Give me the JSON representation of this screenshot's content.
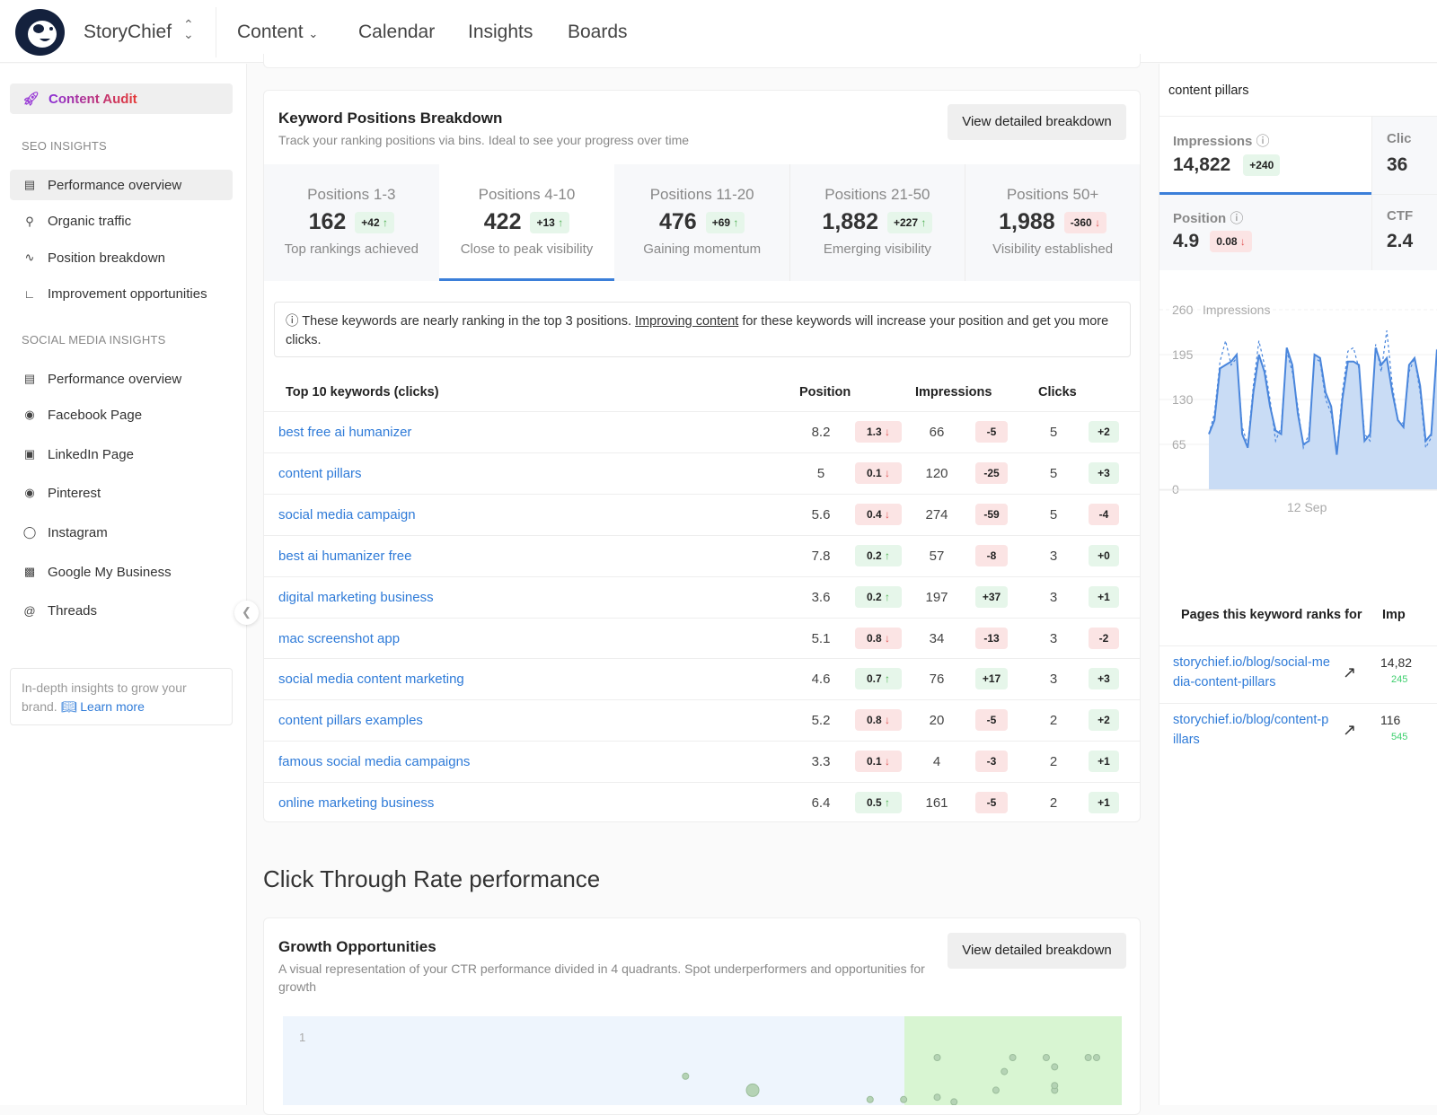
{
  "header": {
    "brand": "StoryChief",
    "nav": [
      "Content",
      "Calendar",
      "Insights",
      "Boards"
    ]
  },
  "sidebar": {
    "audit": "Content Audit",
    "seo_heading": "SEO INSIGHTS",
    "seo_items": [
      {
        "label": "Performance overview",
        "icon": "checklist-icon"
      },
      {
        "label": "Organic traffic",
        "icon": "search-icon"
      },
      {
        "label": "Position breakdown",
        "icon": "pulse-icon"
      },
      {
        "label": "Improvement opportunities",
        "icon": "line-chart-icon"
      }
    ],
    "social_heading": "SOCIAL MEDIA INSIGHTS",
    "social_items": [
      {
        "label": "Performance overview",
        "icon": "checklist-icon"
      },
      {
        "label": "Facebook Page",
        "icon": "facebook-icon"
      },
      {
        "label": "LinkedIn Page",
        "icon": "linkedin-icon"
      },
      {
        "label": "Pinterest",
        "icon": "pinterest-icon"
      },
      {
        "label": "Instagram",
        "icon": "instagram-icon"
      },
      {
        "label": "Google My Business",
        "icon": "store-icon"
      },
      {
        "label": "Threads",
        "icon": "threads-icon"
      }
    ],
    "help_text": "In-depth insights to grow your brand.",
    "help_link": "Learn more"
  },
  "positions": {
    "title": "Keyword Positions Breakdown",
    "subtitle": "Track your ranking positions via bins. Ideal to see your progress over time",
    "button": "View detailed breakdown",
    "bins": [
      {
        "label": "Positions 1-3",
        "value": "162",
        "delta": "+42",
        "dir": "up",
        "desc": "Top rankings achieved"
      },
      {
        "label": "Positions 4-10",
        "value": "422",
        "delta": "+13",
        "dir": "up",
        "desc": "Close to peak visibility"
      },
      {
        "label": "Positions 11-20",
        "value": "476",
        "delta": "+69",
        "dir": "up",
        "desc": "Gaining momentum"
      },
      {
        "label": "Positions 21-50",
        "value": "1,882",
        "delta": "+227",
        "dir": "up",
        "desc": "Emerging visibility"
      },
      {
        "label": "Positions 50+",
        "value": "1,988",
        "delta": "-360",
        "dir": "down",
        "desc": "Visibility established"
      }
    ],
    "info_pre": "These keywords are nearly ranking in the top 3 positions.",
    "info_link": "Improving content",
    "info_post": "for these keywords will increase your position and get you more clicks.",
    "table_headers": [
      "Top 10 keywords (clicks)",
      "Position",
      "Impressions",
      "Clicks"
    ],
    "rows": [
      {
        "kw": "best free ai humanizer",
        "pos": "8.2",
        "pd": "1.3",
        "pdir": "down",
        "imp": "66",
        "id": "-5",
        "idir": "down",
        "clk": "5",
        "cd": "+2",
        "cdir": "up"
      },
      {
        "kw": "content pillars",
        "pos": "5",
        "pd": "0.1",
        "pdir": "down",
        "imp": "120",
        "id": "-25",
        "idir": "down",
        "clk": "5",
        "cd": "+3",
        "cdir": "up"
      },
      {
        "kw": "social media campaign",
        "pos": "5.6",
        "pd": "0.4",
        "pdir": "down",
        "imp": "274",
        "id": "-59",
        "idir": "down",
        "clk": "5",
        "cd": "-4",
        "cdir": "down"
      },
      {
        "kw": "best ai humanizer free",
        "pos": "7.8",
        "pd": "0.2",
        "pdir": "up",
        "imp": "57",
        "id": "-8",
        "idir": "down",
        "clk": "3",
        "cd": "+0",
        "cdir": "up"
      },
      {
        "kw": "digital marketing business",
        "pos": "3.6",
        "pd": "0.2",
        "pdir": "up",
        "imp": "197",
        "id": "+37",
        "idir": "up",
        "clk": "3",
        "cd": "+1",
        "cdir": "up"
      },
      {
        "kw": "mac screenshot app",
        "pos": "5.1",
        "pd": "0.8",
        "pdir": "down",
        "imp": "34",
        "id": "-13",
        "idir": "down",
        "clk": "3",
        "cd": "-2",
        "cdir": "down"
      },
      {
        "kw": "social media content marketing",
        "pos": "4.6",
        "pd": "0.7",
        "pdir": "up",
        "imp": "76",
        "id": "+17",
        "idir": "up",
        "clk": "3",
        "cd": "+3",
        "cdir": "up"
      },
      {
        "kw": "content pillars examples",
        "pos": "5.2",
        "pd": "0.8",
        "pdir": "down",
        "imp": "20",
        "id": "-5",
        "idir": "down",
        "clk": "2",
        "cd": "+2",
        "cdir": "up"
      },
      {
        "kw": "famous social media campaigns",
        "pos": "3.3",
        "pd": "0.1",
        "pdir": "down",
        "imp": "4",
        "id": "-3",
        "idir": "down",
        "clk": "2",
        "cd": "+1",
        "cdir": "up"
      },
      {
        "kw": "online marketing business",
        "pos": "6.4",
        "pd": "0.5",
        "pdir": "up",
        "imp": "161",
        "id": "-5",
        "idir": "down",
        "clk": "2",
        "cd": "+1",
        "cdir": "up"
      }
    ]
  },
  "ctr": {
    "heading": "Click Through Rate performance",
    "title": "Growth Opportunities",
    "subtitle": "A visual representation of your CTR performance divided in 4 quadrants. Spot underperformers and opportunities for growth",
    "button": "View detailed breakdown",
    "y_tick": "1"
  },
  "right": {
    "keyword": "content pillars",
    "metrics": [
      {
        "label": "Impressions",
        "value": "14,822",
        "delta": "+240",
        "dir": "up"
      },
      {
        "label": "Clic",
        "value": "36"
      },
      {
        "label": "Position",
        "value": "4.9",
        "delta": "0.08",
        "dir": "down"
      },
      {
        "label": "CTF",
        "value": "2.4"
      }
    ],
    "pages_header": "Pages this keyword ranks for",
    "imp_header": "Imp",
    "pages": [
      {
        "url": "storychief.io/blog/social-media-content-pillars",
        "imp": "14,82",
        "delta": "245"
      },
      {
        "url": "storychief.io/blog/content-pillars",
        "imp": "116",
        "delta": "545"
      }
    ]
  },
  "chart_data": [
    {
      "type": "area",
      "title": "Impressions",
      "yticks": [
        "260",
        "195",
        "130",
        "65",
        "0"
      ],
      "ylim": [
        0,
        260
      ],
      "xlabel": "12 Sep",
      "series": [
        {
          "name": "current",
          "values": [
            80,
            100,
            175,
            180,
            185,
            195,
            80,
            60,
            140,
            195,
            170,
            120,
            85,
            80,
            205,
            180,
            110,
            65,
            70,
            195,
            190,
            140,
            120,
            50,
            130,
            185,
            185,
            180,
            70,
            80,
            205,
            180,
            190,
            140,
            100,
            90,
            180,
            190,
            150,
            70,
            80,
            200,
            190
          ]
        },
        {
          "name": "previous",
          "dashed": true,
          "values": [
            80,
            110,
            185,
            215,
            180,
            190,
            90,
            65,
            150,
            215,
            180,
            130,
            70,
            90,
            200,
            170,
            120,
            60,
            80,
            190,
            185,
            130,
            110,
            55,
            140,
            200,
            205,
            175,
            80,
            70,
            210,
            170,
            230,
            150,
            100,
            95,
            170,
            190,
            140,
            60,
            75,
            195,
            200
          ]
        }
      ]
    },
    {
      "type": "scatter",
      "y_tick": "1",
      "points": [
        [
          48,
          0.82
        ],
        [
          50,
          0.66
        ],
        [
          56,
          0.76
        ],
        [
          55,
          0.66
        ],
        [
          63,
          0.68
        ],
        [
          64,
          0.61
        ],
        [
          70,
          0.72
        ],
        [
          74,
          0.72
        ],
        [
          78,
          0.9
        ],
        [
          78,
          0.73
        ],
        [
          79,
          0.68
        ],
        [
          78,
          0.62
        ],
        [
          80,
          0.71
        ],
        [
          81,
          0.61
        ],
        [
          85,
          0.76
        ],
        [
          87,
          0.9
        ],
        [
          84,
          0.66
        ],
        [
          86,
          0.84
        ],
        [
          91,
          0.9
        ],
        [
          92,
          0.76
        ],
        [
          92,
          0.78
        ],
        [
          92,
          0.68
        ],
        [
          92,
          0.86
        ],
        [
          96,
          0.9
        ],
        [
          97,
          0.9
        ],
        [
          97,
          0.68
        ]
      ]
    }
  ]
}
